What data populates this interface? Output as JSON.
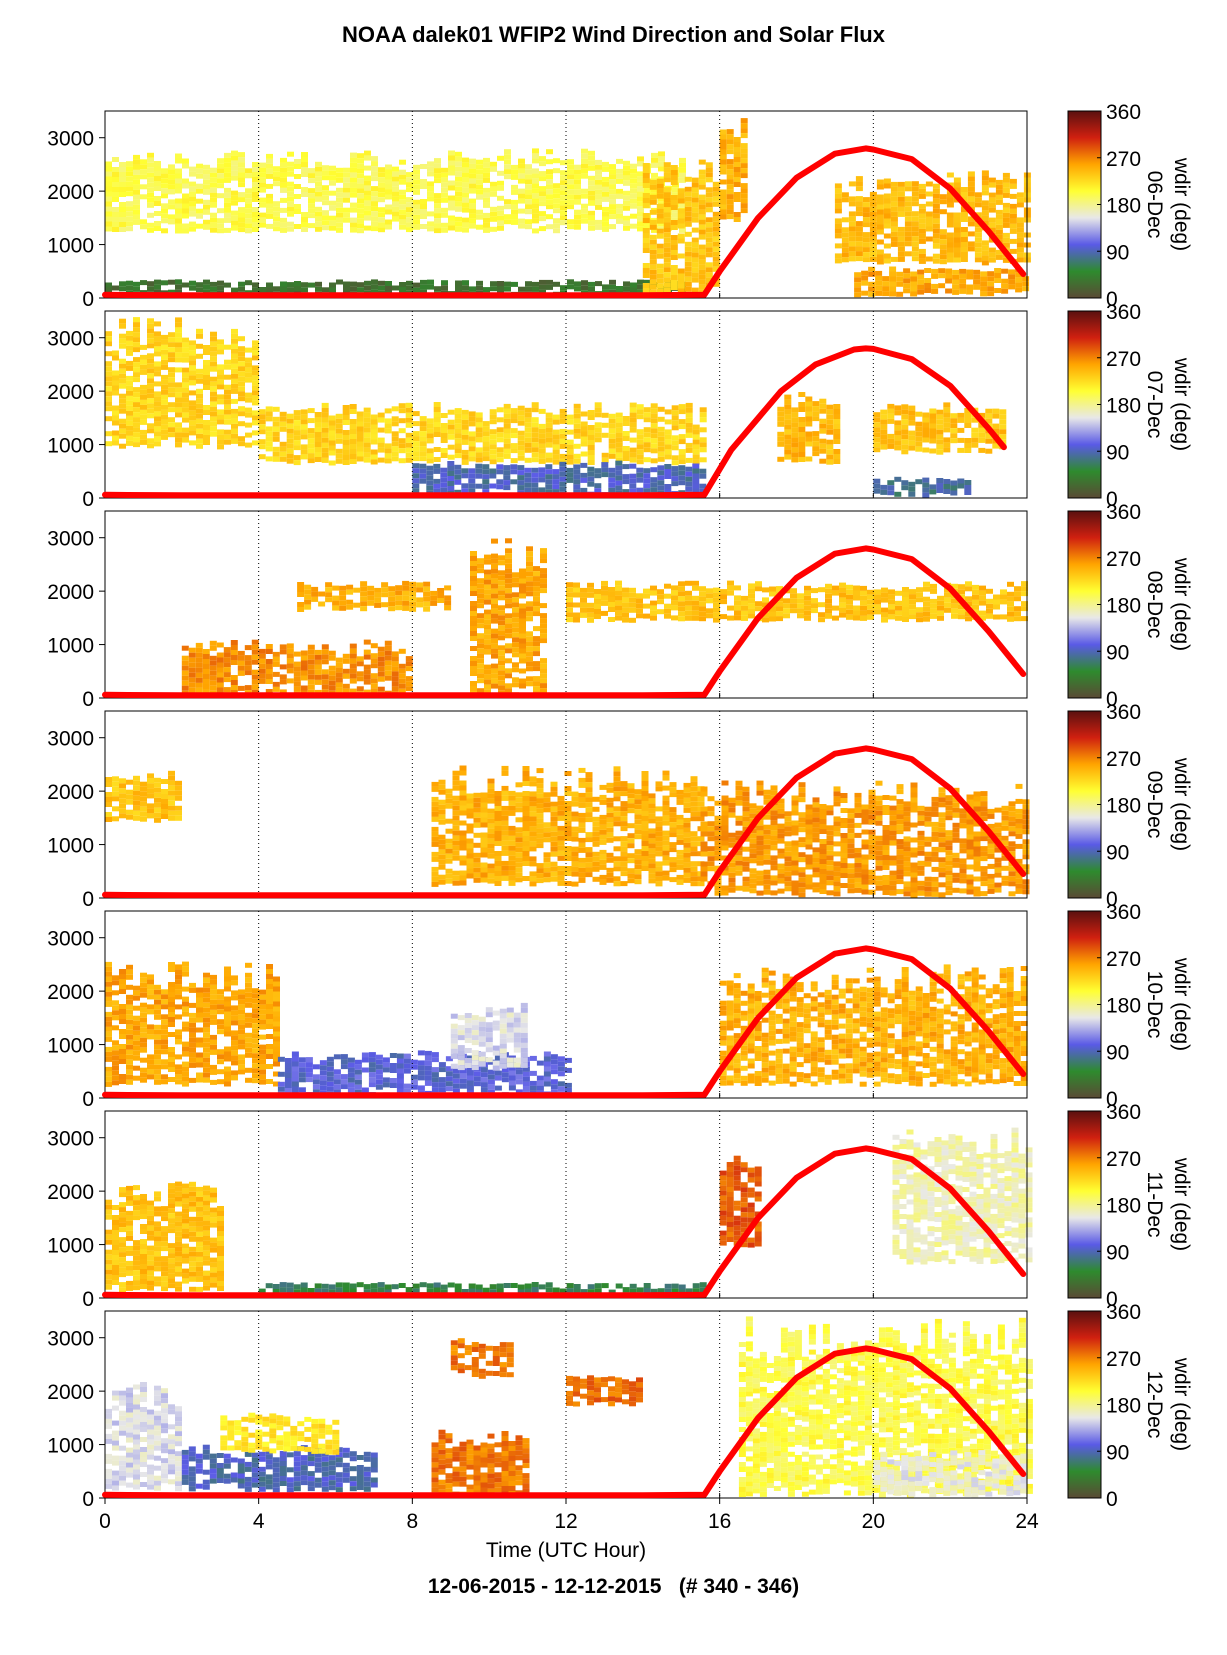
{
  "title": "NOAA dalek01 WFIP2 Wind Direction and Solar Flux",
  "footer": "12-06-2015 - 12-12-2015   (# 340 - 346)",
  "chart_data": {
    "type": "heatmap",
    "xlabel": "Time (UTC Hour)",
    "x_ticks": [
      0,
      4,
      8,
      12,
      16,
      20,
      24
    ],
    "xlim": [
      0,
      24
    ],
    "ylim": [
      0,
      3500
    ],
    "y_ticks": [
      0,
      1000,
      2000,
      3000
    ],
    "grid": "vertical dotted lines at 4-hour ticks",
    "colorbar": {
      "label": "wdir (deg)",
      "ticks": [
        0,
        90,
        180,
        270,
        360
      ],
      "colors": [
        "#5a4a35",
        "#2e8b2e",
        "#5a5ae6",
        "#e8e8e8",
        "#ffff33",
        "#ffa500",
        "#d02010",
        "#5a1010"
      ]
    },
    "solar_flux_color": "#ff0000",
    "panels": [
      {
        "day": "06-Dec",
        "solar_flux": {
          "x": [
            0,
            2,
            4,
            6,
            8,
            10,
            12,
            14,
            15.6,
            16,
            17,
            18,
            19,
            19.8,
            20,
            21,
            22,
            23,
            23.9
          ],
          "y": [
            60,
            50,
            50,
            50,
            50,
            50,
            50,
            50,
            60,
            500,
            1500,
            2250,
            2700,
            2800,
            2780,
            2600,
            2050,
            1250,
            450
          ]
        },
        "regions": [
          {
            "x": [
              0,
              15
            ],
            "y": [
              1300,
              2800
            ],
            "wdir": 200
          },
          {
            "x": [
              0,
              15
            ],
            "y": [
              100,
              350
            ],
            "wdir": 30
          },
          {
            "x": [
              14,
              16
            ],
            "y": [
              150,
              2800
            ],
            "wdir": 240
          },
          {
            "x": [
              16,
              16.7
            ],
            "y": [
              1500,
              3400
            ],
            "wdir": 250
          },
          {
            "x": [
              19,
              24
            ],
            "y": [
              700,
              2400
            ],
            "wdir": 245
          },
          {
            "x": [
              19.5,
              24
            ],
            "y": [
              100,
              600
            ],
            "wdir": 255
          }
        ]
      },
      {
        "day": "07-Dec",
        "solar_flux": {
          "x": [
            0,
            2,
            4,
            6,
            8,
            10,
            12,
            14,
            15.6,
            16.3,
            17.6,
            18.5,
            19.5,
            19.8,
            20,
            21,
            22,
            23,
            23.4
          ],
          "y": [
            60,
            50,
            50,
            50,
            50,
            50,
            50,
            50,
            60,
            900,
            2000,
            2500,
            2780,
            2800,
            2790,
            2600,
            2100,
            1300,
            950
          ]
        },
        "regions": [
          {
            "x": [
              0,
              4
            ],
            "y": [
              1000,
              3400
            ],
            "wdir": 230
          },
          {
            "x": [
              4,
              15.5
            ],
            "y": [
              700,
              1800
            ],
            "wdir": 230
          },
          {
            "x": [
              8,
              15.5
            ],
            "y": [
              100,
              700
            ],
            "wdir": 90
          },
          {
            "x": [
              17.5,
              19
            ],
            "y": [
              700,
              2000
            ],
            "wdir": 245
          },
          {
            "x": [
              20,
              23.3
            ],
            "y": [
              900,
              1800
            ],
            "wdir": 240
          },
          {
            "x": [
              20,
              22.5
            ],
            "y": [
              100,
              400
            ],
            "wdir": 80
          }
        ]
      },
      {
        "day": "08-Dec",
        "solar_flux": {
          "x": [
            0,
            2,
            4,
            6,
            8,
            10,
            12,
            14,
            15.6,
            16,
            17,
            18,
            19,
            19.8,
            20,
            21,
            22,
            23,
            23.9
          ],
          "y": [
            60,
            50,
            50,
            50,
            50,
            50,
            50,
            50,
            60,
            500,
            1500,
            2250,
            2700,
            2800,
            2780,
            2600,
            2050,
            1250,
            450
          ]
        },
        "regions": [
          {
            "x": [
              2,
              8
            ],
            "y": [
              100,
              1100
            ],
            "wdir": 265
          },
          {
            "x": [
              9.5,
              11.5
            ],
            "y": [
              100,
              3000
            ],
            "wdir": 255
          },
          {
            "x": [
              12,
              24
            ],
            "y": [
              1500,
              2200
            ],
            "wdir": 240
          },
          {
            "x": [
              5,
              9
            ],
            "y": [
              1700,
              2200
            ],
            "wdir": 250
          }
        ]
      },
      {
        "day": "09-Dec",
        "solar_flux": {
          "x": [
            0,
            2,
            4,
            6,
            8,
            10,
            12,
            14,
            15.6,
            16,
            17,
            18,
            19,
            19.8,
            20,
            21,
            22,
            23,
            23.9
          ],
          "y": [
            60,
            50,
            50,
            50,
            50,
            50,
            50,
            50,
            60,
            500,
            1500,
            2250,
            2700,
            2800,
            2780,
            2600,
            2050,
            1250,
            450
          ]
        },
        "regions": [
          {
            "x": [
              0,
              2
            ],
            "y": [
              1500,
              2400
            ],
            "wdir": 240
          },
          {
            "x": [
              8.5,
              15.5
            ],
            "y": [
              300,
              2500
            ],
            "wdir": 250
          },
          {
            "x": [
              15.5,
              24
            ],
            "y": [
              100,
              2200
            ],
            "wdir": 260
          }
        ]
      },
      {
        "day": "10-Dec",
        "solar_flux": {
          "x": [
            0,
            2,
            4,
            6,
            8,
            10,
            12,
            14,
            15.6,
            16,
            17,
            18,
            19,
            19.8,
            20,
            21,
            22,
            23,
            23.9
          ],
          "y": [
            60,
            50,
            50,
            50,
            50,
            50,
            50,
            50,
            60,
            500,
            1500,
            2250,
            2700,
            2800,
            2780,
            2600,
            2050,
            1250,
            450
          ]
        },
        "regions": [
          {
            "x": [
              0,
              4.5
            ],
            "y": [
              300,
              2600
            ],
            "wdir": 255
          },
          {
            "x": [
              4.5,
              12
            ],
            "y": [
              100,
              900
            ],
            "wdir": 100
          },
          {
            "x": [
              9,
              11
            ],
            "y": [
              600,
              1800
            ],
            "wdir": 150
          },
          {
            "x": [
              16,
              24
            ],
            "y": [
              300,
              2500
            ],
            "wdir": 250
          }
        ]
      },
      {
        "day": "11-Dec",
        "solar_flux": {
          "x": [
            0,
            2,
            4,
            6,
            8,
            10,
            12,
            14,
            15.6,
            16,
            17,
            18,
            19,
            19.8,
            20,
            21,
            22,
            23,
            23.9
          ],
          "y": [
            60,
            50,
            50,
            50,
            50,
            50,
            50,
            50,
            60,
            500,
            1500,
            2250,
            2700,
            2800,
            2780,
            2600,
            2050,
            1250,
            450
          ]
        },
        "regions": [
          {
            "x": [
              0,
              3
            ],
            "y": [
              200,
              2200
            ],
            "wdir": 240
          },
          {
            "x": [
              4,
              15.5
            ],
            "y": [
              100,
              300
            ],
            "wdir": 60
          },
          {
            "x": [
              16,
              17
            ],
            "y": [
              1000,
              2800
            ],
            "wdir": 285
          },
          {
            "x": [
              20.5,
              24
            ],
            "y": [
              700,
              3200
            ],
            "wdir": 170
          }
        ]
      },
      {
        "day": "12-Dec",
        "solar_flux": {
          "x": [
            0,
            2,
            4,
            6,
            8,
            10,
            12,
            14,
            15.6,
            16,
            17,
            18,
            19,
            19.8,
            20,
            21,
            22,
            23,
            23.9
          ],
          "y": [
            60,
            50,
            50,
            50,
            50,
            50,
            50,
            50,
            60,
            500,
            1500,
            2250,
            2700,
            2800,
            2780,
            2600,
            2050,
            1250,
            450
          ]
        },
        "regions": [
          {
            "x": [
              0,
              2
            ],
            "y": [
              200,
              2200
            ],
            "wdir": 150
          },
          {
            "x": [
              2,
              7
            ],
            "y": [
              200,
              1000
            ],
            "wdir": 90
          },
          {
            "x": [
              3,
              6
            ],
            "y": [
              900,
              1600
            ],
            "wdir": 220
          },
          {
            "x": [
              9,
              10.5
            ],
            "y": [
              2300,
              3000
            ],
            "wdir": 275
          },
          {
            "x": [
              8.5,
              11
            ],
            "y": [
              100,
              1300
            ],
            "wdir": 275
          },
          {
            "x": [
              12,
              14
            ],
            "y": [
              1800,
              2300
            ],
            "wdir": 280
          },
          {
            "x": [
              16.5,
              24
            ],
            "y": [
              100,
              3400
            ],
            "wdir": 200
          },
          {
            "x": [
              20,
              24
            ],
            "y": [
              100,
              900
            ],
            "wdir": 160
          }
        ]
      }
    ]
  }
}
